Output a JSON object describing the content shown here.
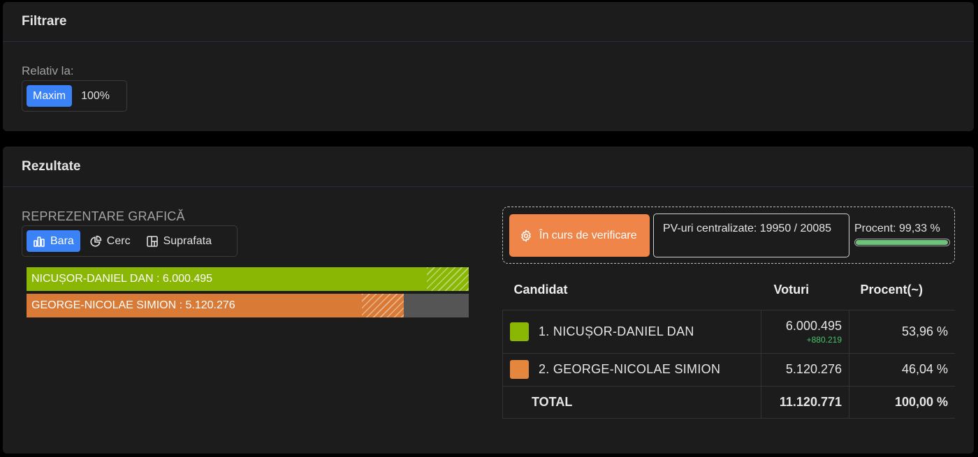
{
  "filter": {
    "title": "Filtrare",
    "relativ_label": "Relativ la:",
    "options": [
      {
        "label": "Maxim",
        "active": true
      },
      {
        "label": "100%",
        "active": false
      }
    ]
  },
  "results": {
    "title": "Rezultate",
    "repr_label": "REPREZENTARE GRAFICĂ",
    "chart_types": [
      {
        "label": "Bara",
        "icon": "bar-chart-icon",
        "active": true
      },
      {
        "label": "Cerc",
        "icon": "pie-chart-icon",
        "active": false
      },
      {
        "label": "Suprafata",
        "icon": "treemap-icon",
        "active": false
      }
    ],
    "status": {
      "badge": "În curs de verificare",
      "pv": "PV-uri centralizate: 19950 / 20085",
      "procent_text": "Procent: 99,33 %",
      "procent_value": 99.33
    },
    "table": {
      "headers": [
        "Candidat",
        "Voturi",
        "Procent(~)"
      ],
      "rows": [
        {
          "name": "1. NICUȘOR-DANIEL DAN",
          "votes": "6.000.495",
          "delta": "+880.219",
          "percent": "53,96 %",
          "color": "#89b704"
        },
        {
          "name": "2. GEORGE-NICOLAE SIMION",
          "votes": "5.120.276",
          "delta": "",
          "percent": "46,04 %",
          "color": "#e5863f"
        }
      ],
      "total": {
        "label": "TOTAL",
        "votes": "11.120.771",
        "percent": "100,00 %"
      }
    }
  },
  "chart_data": {
    "type": "bar",
    "orientation": "horizontal",
    "categories": [
      "NICUȘOR-DANIEL DAN",
      "GEORGE-NICOLAE SIMION"
    ],
    "values": [
      6000495,
      5120276
    ],
    "labels": [
      "NICUȘOR-DANIEL DAN : 6.000.495",
      "GEORGE-NICOLAE SIMION : 5.120.276"
    ],
    "colors": [
      "#89b704",
      "#d97a36"
    ],
    "xlim": [
      0,
      6000495
    ]
  }
}
